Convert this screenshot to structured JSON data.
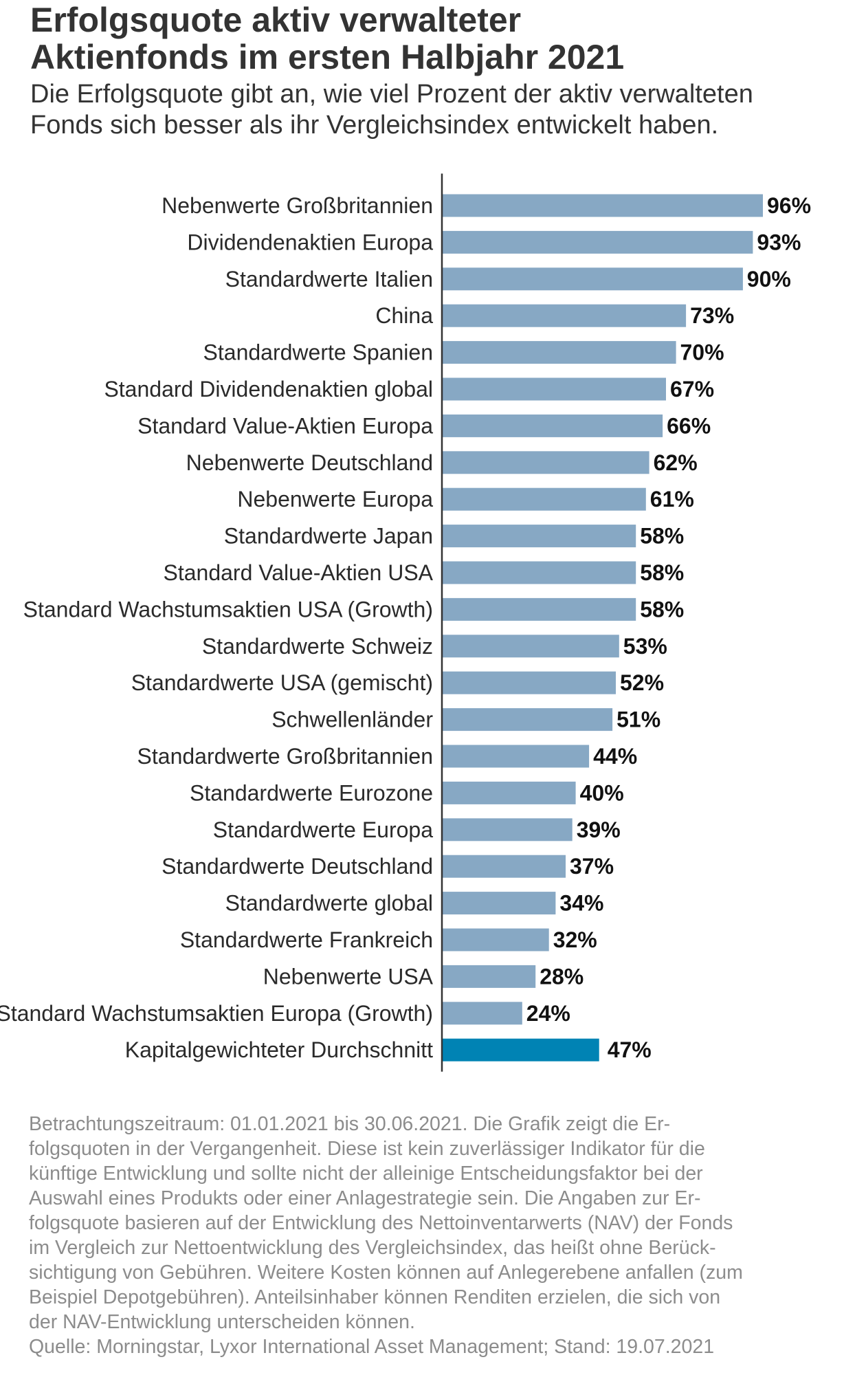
{
  "chart_data": {
    "type": "bar",
    "orientation": "horizontal",
    "title": "Erfolgsquote aktiv verwalteter Aktienfonds im ersten Halbjahr 2021",
    "subtitle": "Die Erfolgsquote gibt an, wie viel Prozent der aktiv verwalteten Fonds sich besser als ihr Vergleichsindex entwickelt haben.",
    "categories": [
      "Nebenwerte Großbritannien",
      "Dividendenaktien Europa",
      "Standardwerte Italien",
      "China",
      "Standardwerte Spanien",
      "Standard Dividendenaktien global",
      "Standard Value-Aktien Europa",
      "Nebenwerte Deutschland",
      "Nebenwerte Europa",
      "Standardwerte Japan",
      "Standard Value-Aktien USA",
      "Standard Wachstumsaktien USA (Growth)",
      "Standardwerte Schweiz",
      "Standardwerte USA (gemischt)",
      "Schwellenländer",
      "Standardwerte Großbritannien",
      "Standardwerte Eurozone",
      "Standardwerte Europa",
      "Standardwerte Deutschland",
      "Standardwerte global",
      "Standardwerte Frankreich",
      "Nebenwerte USA",
      "Standard Wachstumsaktien Europa (Growth)",
      "Kapitalgewichteter Durchschnitt"
    ],
    "values": [
      96,
      93,
      90,
      73,
      70,
      67,
      66,
      62,
      61,
      58,
      58,
      58,
      53,
      52,
      51,
      44,
      40,
      39,
      37,
      34,
      32,
      28,
      24,
      47
    ],
    "value_labels": [
      "96%",
      "93%",
      "90%",
      "73%",
      "70%",
      "67%",
      "66%",
      "62%",
      "61%",
      "58%",
      "58%",
      "58%",
      "53%",
      "52%",
      "51%",
      "44%",
      "40%",
      "39%",
      "37%",
      "34%",
      "32%",
      "28%",
      "24%",
      "47%"
    ],
    "highlight_index": 23,
    "unit": "%",
    "xlim": [
      0,
      100
    ],
    "grid": false,
    "legend": "none",
    "colors": {
      "bar": "#87a8c4",
      "highlight": "#0083b4",
      "axis": "#333333"
    }
  },
  "footnote": {
    "lines": [
      "Betrachtungszeitraum: 01.01.2021 bis 30.06.2021. Die Grafik zeigt die Er-",
      "folgsquoten in der Vergangenheit. Diese ist kein zuverlässiger Indikator für die",
      "künftige Entwicklung und sollte nicht der alleinige Entscheidungsfaktor bei der",
      "Auswahl eines Produkts oder einer Anlagestrategie sein. Die Angaben zur Er-",
      "folgsquote basieren auf der Entwicklung des Nettoinventarwerts (NAV) der Fonds",
      "im Vergleich zur Nettoentwicklung des Vergleichsindex, das heißt ohne Berück-",
      "sichtigung von Gebühren. Weitere Kosten können auf Anlegerebene anfallen (zum",
      "Beispiel Depotgebühren). Anteilsinhaber können Renditen erzielen, die sich von",
      "der NAV-Entwicklung unterscheiden können."
    ],
    "source": "Quelle: Morningstar, Lyxor International Asset Management; Stand: 19.07.2021"
  }
}
